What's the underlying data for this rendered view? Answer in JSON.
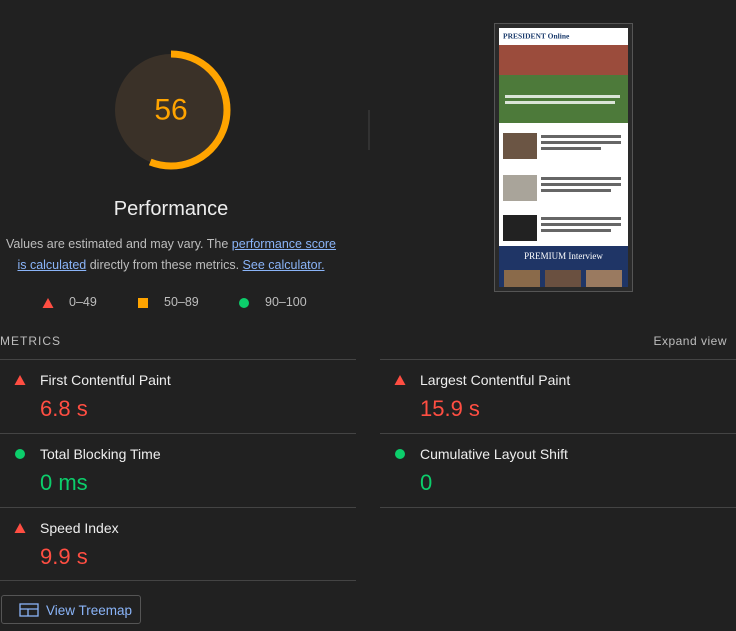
{
  "gauge": {
    "score": 56,
    "label": "Performance"
  },
  "description": {
    "text1": "Values are estimated and may vary. The ",
    "link1": "performance score is calculated",
    "text2": " directly from these metrics. ",
    "link2": "See calculator."
  },
  "legend": [
    {
      "shape": "triangle",
      "label": "0–49"
    },
    {
      "shape": "square",
      "label": "50–89"
    },
    {
      "shape": "circle",
      "label": "90–100"
    }
  ],
  "thumbnail": {
    "brand": "PRESIDENT Online",
    "banner": "PREMIUM Interview"
  },
  "metrics": {
    "title": "METRICS",
    "toggle": "Expand view",
    "items": [
      {
        "label": "First Contentful Paint",
        "value": "6.8 s",
        "rating": "fail"
      },
      {
        "label": "Largest Contentful Paint",
        "value": "15.9 s",
        "rating": "fail"
      },
      {
        "label": "Total Blocking Time",
        "value": "0 ms",
        "rating": "pass"
      },
      {
        "label": "Cumulative Layout Shift",
        "value": "0",
        "rating": "pass"
      },
      {
        "label": "Speed Index",
        "value": "9.9 s",
        "rating": "fail"
      }
    ]
  },
  "button": "View Treemap"
}
